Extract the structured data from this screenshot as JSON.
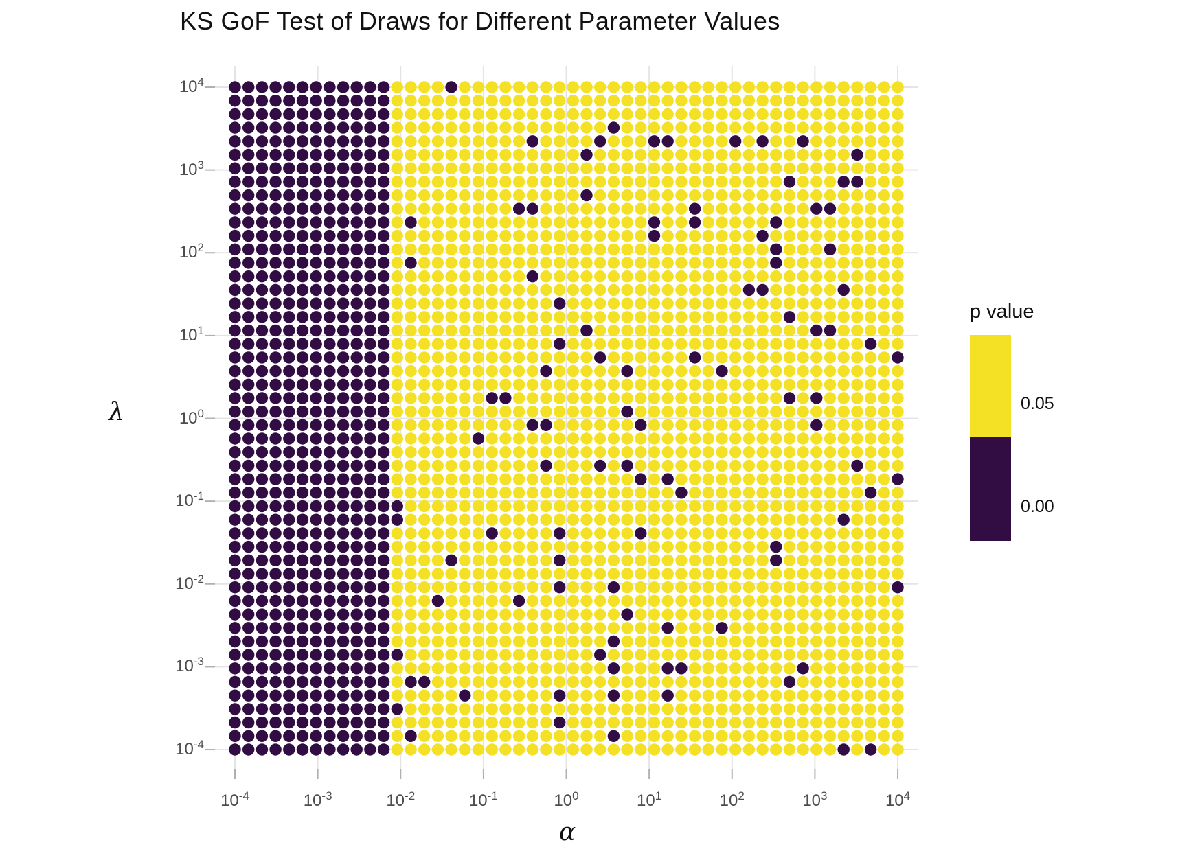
{
  "title": "KS GoF Test of Draws for Different Parameter Values",
  "chart_data": {
    "type": "scatter",
    "title": "KS GoF Test of Draws for Different Parameter Values",
    "xlabel": "α",
    "ylabel": "λ",
    "x_axis": {
      "scale": "log10",
      "tick_exponents": [
        -4,
        -3,
        -2,
        -1,
        0,
        1,
        2,
        3,
        4
      ],
      "range_exponents": [
        -4,
        4
      ],
      "grid": "major-only"
    },
    "y_axis": {
      "scale": "log10",
      "tick_exponents": [
        4,
        3,
        2,
        1,
        0,
        -1,
        -2,
        -3,
        -4
      ],
      "range_exponents": [
        -4,
        4
      ],
      "grid": "major-only"
    },
    "grid_spec": {
      "points_per_axis": 50,
      "col_alpha_exponent": "alpha_exp = -4 + col * 8/49  (col 0..49, left to right)",
      "row_lambda_exponent": "lambda_exp = 4 - row * 8/49  (row 0..49, top to bottom)"
    },
    "significance_threshold": 0.05,
    "legend": {
      "title": "p value",
      "labels": [
        "0.05",
        "0.00"
      ],
      "position": "right",
      "color_above_threshold": "#F4E125",
      "color_below_threshold": "#310D44"
    },
    "colors": {
      "p_ge_threshold": "#F4E125",
      "p_lt_threshold": "#310D44",
      "gridline": "#E4E4E4",
      "tick_mark": "#B0B0B0",
      "tick_text": "#4d4d4d"
    },
    "all_dark_column_range": [
      0,
      11
    ],
    "dark_points_col_row": [
      [
        16,
        0
      ],
      [
        28,
        3
      ],
      [
        22,
        4
      ],
      [
        27,
        4
      ],
      [
        31,
        4
      ],
      [
        32,
        4
      ],
      [
        37,
        4
      ],
      [
        39,
        4
      ],
      [
        42,
        4
      ],
      [
        26,
        5
      ],
      [
        46,
        5
      ],
      [
        41,
        7
      ],
      [
        45,
        7
      ],
      [
        46,
        7
      ],
      [
        26,
        8
      ],
      [
        21,
        9
      ],
      [
        22,
        9
      ],
      [
        34,
        9
      ],
      [
        43,
        9
      ],
      [
        44,
        9
      ],
      [
        13,
        10
      ],
      [
        31,
        10
      ],
      [
        34,
        10
      ],
      [
        40,
        10
      ],
      [
        31,
        11
      ],
      [
        39,
        11
      ],
      [
        40,
        12
      ],
      [
        44,
        12
      ],
      [
        13,
        13
      ],
      [
        40,
        13
      ],
      [
        22,
        14
      ],
      [
        38,
        15
      ],
      [
        39,
        15
      ],
      [
        45,
        15
      ],
      [
        24,
        16
      ],
      [
        41,
        17
      ],
      [
        26,
        18
      ],
      [
        43,
        18
      ],
      [
        44,
        18
      ],
      [
        24,
        19
      ],
      [
        47,
        19
      ],
      [
        27,
        20
      ],
      [
        34,
        20
      ],
      [
        49,
        20
      ],
      [
        23,
        21
      ],
      [
        29,
        21
      ],
      [
        36,
        21
      ],
      [
        19,
        23
      ],
      [
        20,
        23
      ],
      [
        41,
        23
      ],
      [
        43,
        23
      ],
      [
        29,
        24
      ],
      [
        22,
        25
      ],
      [
        23,
        25
      ],
      [
        30,
        25
      ],
      [
        43,
        25
      ],
      [
        18,
        26
      ],
      [
        23,
        28
      ],
      [
        27,
        28
      ],
      [
        29,
        28
      ],
      [
        46,
        28
      ],
      [
        30,
        29
      ],
      [
        32,
        29
      ],
      [
        49,
        29
      ],
      [
        33,
        30
      ],
      [
        47,
        30
      ],
      [
        12,
        31
      ],
      [
        12,
        32
      ],
      [
        45,
        32
      ],
      [
        19,
        33
      ],
      [
        24,
        33
      ],
      [
        30,
        33
      ],
      [
        40,
        34
      ],
      [
        16,
        35
      ],
      [
        24,
        35
      ],
      [
        40,
        35
      ],
      [
        24,
        37
      ],
      [
        28,
        37
      ],
      [
        49,
        37
      ],
      [
        15,
        38
      ],
      [
        21,
        38
      ],
      [
        29,
        39
      ],
      [
        32,
        40
      ],
      [
        36,
        40
      ],
      [
        28,
        41
      ],
      [
        12,
        42
      ],
      [
        27,
        42
      ],
      [
        28,
        43
      ],
      [
        32,
        43
      ],
      [
        33,
        43
      ],
      [
        42,
        43
      ],
      [
        13,
        44
      ],
      [
        14,
        44
      ],
      [
        41,
        44
      ],
      [
        17,
        45
      ],
      [
        24,
        45
      ],
      [
        28,
        45
      ],
      [
        32,
        45
      ],
      [
        12,
        46
      ],
      [
        24,
        47
      ],
      [
        13,
        48
      ],
      [
        28,
        48
      ],
      [
        45,
        49
      ],
      [
        47,
        49
      ]
    ],
    "note": "50x50 log-spaced parameter grid; every point with alpha column 0-11 (alpha <= ~10^-2.2) is dark (p < 0.05); all other points are yellow (p >= 0.05) except the listed dark_points_col_row."
  }
}
